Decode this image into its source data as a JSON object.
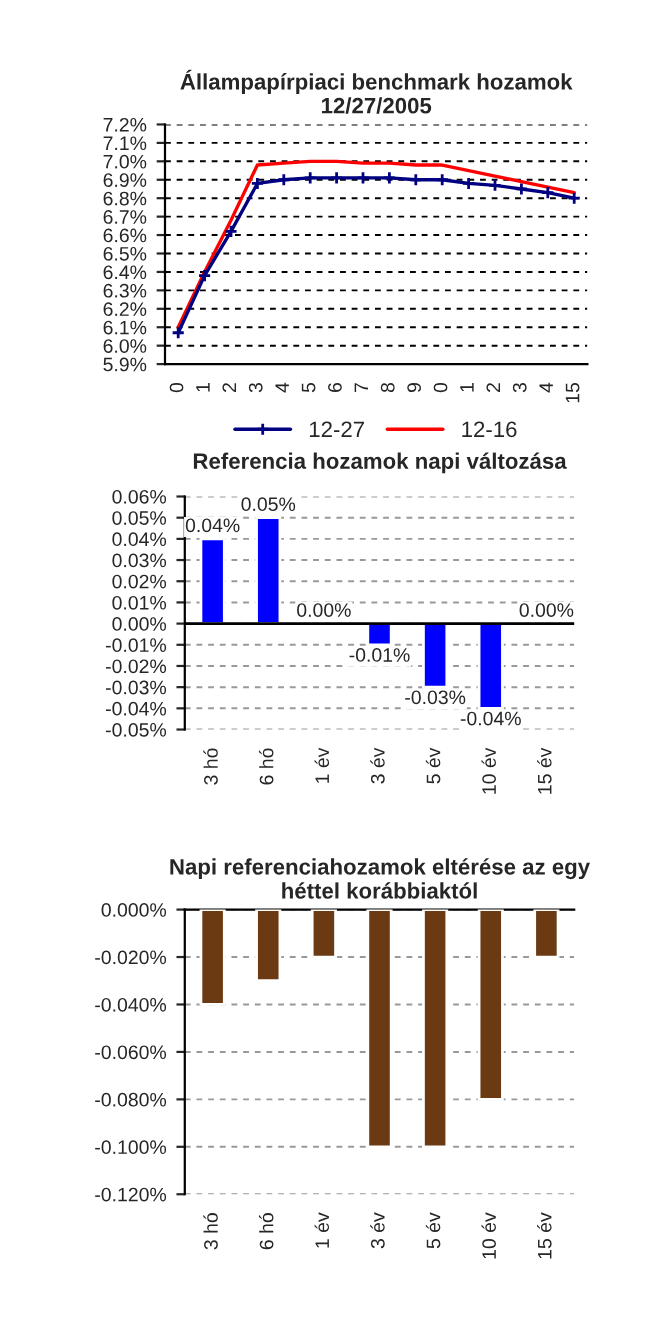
{
  "chart_data": [
    {
      "type": "line",
      "title": "Állampapírpiaci benchmark hozamok\n12/27/2005",
      "categories": [
        "0",
        "1",
        "2",
        "3",
        "4",
        "5",
        "6",
        "7",
        "8",
        "9",
        "0",
        "1",
        "2",
        "3",
        "4",
        "15"
      ],
      "series": [
        {
          "name": "12-27",
          "color": "#000080",
          "marker": "cross",
          "values": [
            6.07,
            6.38,
            6.62,
            6.88,
            6.9,
            6.91,
            6.91,
            6.91,
            6.91,
            6.9,
            6.9,
            6.88,
            6.87,
            6.85,
            6.83,
            6.8
          ]
        },
        {
          "name": "12-16",
          "color": "#ff0000",
          "marker": "none",
          "values": [
            6.1,
            6.4,
            6.68,
            6.98,
            6.99,
            7.0,
            7.0,
            6.99,
            6.99,
            6.98,
            6.98,
            6.95,
            6.92,
            6.89,
            6.86,
            6.83
          ]
        }
      ],
      "ylim": [
        5.9,
        7.2
      ],
      "yticks": [
        {
          "value": 5.9,
          "label": "5.9%"
        },
        {
          "value": 6.0,
          "label": "6.0%"
        },
        {
          "value": 6.1,
          "label": "6.1%"
        },
        {
          "value": 6.2,
          "label": "6.2%"
        },
        {
          "value": 6.3,
          "label": "6.3%"
        },
        {
          "value": 6.4,
          "label": "6.4%"
        },
        {
          "value": 6.5,
          "label": "6.5%"
        },
        {
          "value": 6.6,
          "label": "6.6%"
        },
        {
          "value": 6.7,
          "label": "6.7%"
        },
        {
          "value": 6.8,
          "label": "6.8%"
        },
        {
          "value": 6.9,
          "label": "6.9%"
        },
        {
          "value": 7.0,
          "label": "7.0%"
        },
        {
          "value": 7.1,
          "label": "7.1%"
        },
        {
          "value": 7.2,
          "label": "7.2%"
        }
      ],
      "grid": "y",
      "legend": "bottom"
    },
    {
      "type": "bar",
      "title": "Referencia hozamok napi változása",
      "categories": [
        "3 hó",
        "6 hó",
        "1 év",
        "3 év",
        "5 év",
        "10 év",
        "15 év"
      ],
      "values": [
        0.04,
        0.05,
        0.0,
        -0.01,
        -0.03,
        -0.04,
        0.0
      ],
      "color": "#0000ff",
      "value_labels": [
        "0.04%",
        "0.05%",
        "0.00%",
        "-0.01%",
        "-0.03%",
        "-0.04%",
        "0.00%"
      ],
      "ylim": [
        -0.05,
        0.06
      ],
      "yticks": [
        {
          "value": -0.05,
          "label": "-0.05%"
        },
        {
          "value": -0.04,
          "label": "-0.04%"
        },
        {
          "value": -0.03,
          "label": "-0.03%"
        },
        {
          "value": -0.02,
          "label": "-0.02%"
        },
        {
          "value": -0.01,
          "label": "-0.01%"
        },
        {
          "value": 0.0,
          "label": "0.00%"
        },
        {
          "value": 0.01,
          "label": "0.01%"
        },
        {
          "value": 0.02,
          "label": "0.02%"
        },
        {
          "value": 0.03,
          "label": "0.03%"
        },
        {
          "value": 0.04,
          "label": "0.04%"
        },
        {
          "value": 0.05,
          "label": "0.05%"
        },
        {
          "value": 0.06,
          "label": "0.06%"
        }
      ],
      "grid": "y"
    },
    {
      "type": "bar",
      "title": "Napi referenciahozamok eltérése az egy\nhéttel korábbiaktól",
      "categories": [
        "3 hó",
        "6 hó",
        "1 év",
        "3 év",
        "5 év",
        "10 év",
        "15 év"
      ],
      "values": [
        -0.04,
        -0.03,
        -0.02,
        -0.1,
        -0.1,
        -0.08,
        -0.02
      ],
      "color": "#6b3a12",
      "ylim": [
        -0.12,
        0.0
      ],
      "yticks": [
        {
          "value": -0.12,
          "label": "-0.120%"
        },
        {
          "value": -0.1,
          "label": "-0.100%"
        },
        {
          "value": -0.08,
          "label": "-0.080%"
        },
        {
          "value": -0.06,
          "label": "-0.060%"
        },
        {
          "value": -0.04,
          "label": "-0.040%"
        },
        {
          "value": -0.02,
          "label": "-0.020%"
        },
        {
          "value": 0.0,
          "label": "0.000%"
        }
      ],
      "grid": "y"
    }
  ]
}
